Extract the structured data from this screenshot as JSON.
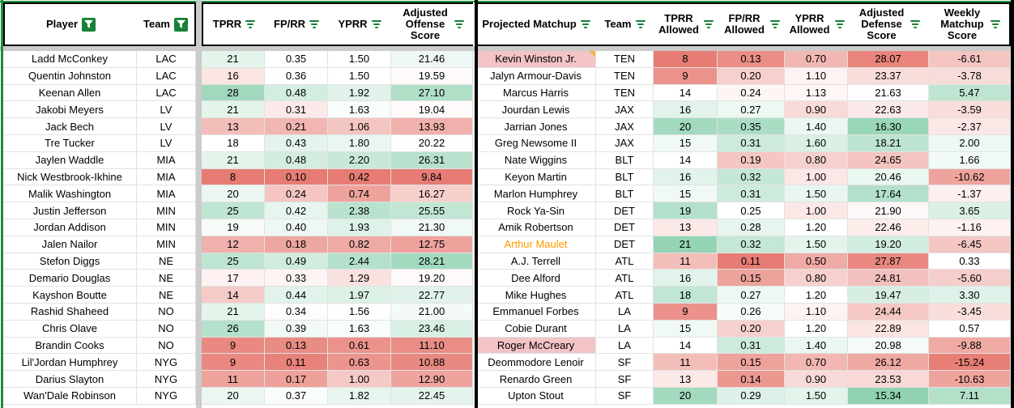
{
  "header": {
    "left": [
      {
        "label": "Player",
        "icon": "funnel-filter-active"
      },
      {
        "label": "Team",
        "icon": "funnel-filter-active"
      },
      {
        "label": "TPRR",
        "icon": "filter-lines"
      },
      {
        "label": "FP/RR",
        "icon": "filter-lines"
      },
      {
        "label": "YPRR",
        "icon": "filter-lines"
      },
      {
        "label": "Adjusted Offense Score",
        "icon": "filter-lines"
      }
    ],
    "right": [
      {
        "label": "Projected Matchup",
        "icon": "filter-lines"
      },
      {
        "label": "Team",
        "icon": "filter-lines"
      },
      {
        "label": "TPRR Allowed",
        "icon": "filter-lines"
      },
      {
        "label": "FP/RR Allowed",
        "icon": "filter-lines"
      },
      {
        "label": "YPRR Allowed",
        "icon": "filter-lines"
      },
      {
        "label": "Adjusted Defense Score",
        "icon": "filter-lines"
      },
      {
        "label": "Weekly Matchup Score",
        "icon": "filter-lines"
      }
    ]
  },
  "colors": {
    "filter_green": "#188038",
    "frozen_divider_grey": "#cbcbcb",
    "gridline": "#e2e2e2",
    "table_border": "#000000",
    "note_corner_orange": "#f6b73c",
    "matchup_highlight_pink": "#f2c4c6",
    "orange_player_text": "#ff9900",
    "scale_red": "#e67c73",
    "scale_green": "#57bb8a"
  },
  "rows": [
    {
      "player": "Ladd McConkey",
      "team": "LAC",
      "stats": [
        {
          "v": "21",
          "bg": "#e3f4eb"
        },
        {
          "v": "0.35",
          "bg": "#ffffff"
        },
        {
          "v": "1.50",
          "bg": "#ffffff"
        },
        {
          "v": "21.46",
          "bg": "#eff8f4"
        }
      ],
      "matchup": {
        "name": "Kevin Winston Jr.",
        "bg": "#f2c4c6",
        "note": true
      },
      "mteam": "TEN",
      "mstats": [
        {
          "v": "8",
          "bg": "#e67c73"
        },
        {
          "v": "0.13",
          "bg": "#ea8e87"
        },
        {
          "v": "0.70",
          "bg": "#f1b7b2"
        },
        {
          "v": "28.07",
          "bg": "#e8847b"
        },
        {
          "v": "-6.61",
          "bg": "#f4c5c1"
        }
      ]
    },
    {
      "player": "Quentin Johnston",
      "team": "LAC",
      "stats": [
        {
          "v": "16",
          "bg": "#fae5e3"
        },
        {
          "v": "0.36",
          "bg": "#fdfefd"
        },
        {
          "v": "1.50",
          "bg": "#ffffff"
        },
        {
          "v": "19.59",
          "bg": "#fefafa"
        }
      ],
      "matchup": {
        "name": "Jalyn Armour-Davis"
      },
      "mteam": "TEN",
      "mstats": [
        {
          "v": "9",
          "bg": "#ea928b"
        },
        {
          "v": "0.20",
          "bg": "#f6d0cd"
        },
        {
          "v": "1.10",
          "bg": "#fdf3f2"
        },
        {
          "v": "23.37",
          "bg": "#f8dcd9"
        },
        {
          "v": "-3.78",
          "bg": "#f8dcd9"
        }
      ]
    },
    {
      "player": "Keenan Allen",
      "team": "LAC",
      "stats": [
        {
          "v": "28",
          "bg": "#a2d9be"
        },
        {
          "v": "0.48",
          "bg": "#d3ede1"
        },
        {
          "v": "1.92",
          "bg": "#e0f2e9"
        },
        {
          "v": "27.10",
          "bg": "#b0dfc8"
        }
      ],
      "matchup": {
        "name": "Marcus Harris"
      },
      "mteam": "TEN",
      "mstats": [
        {
          "v": "14",
          "bg": "#ffffff"
        },
        {
          "v": "0.24",
          "bg": "#fdf6f5"
        },
        {
          "v": "1.13",
          "bg": "#fef7f6"
        },
        {
          "v": "21.63",
          "bg": "#fefcfc"
        },
        {
          "v": "5.47",
          "bg": "#bfe5d2"
        }
      ]
    },
    {
      "player": "Jakobi Meyers",
      "team": "LV",
      "stats": [
        {
          "v": "21",
          "bg": "#e3f4eb"
        },
        {
          "v": "0.31",
          "bg": "#fbeae9"
        },
        {
          "v": "1.63",
          "bg": "#f8fcfa"
        },
        {
          "v": "19.04",
          "bg": "#fefafa"
        }
      ],
      "matchup": {
        "name": "Jourdan Lewis"
      },
      "mteam": "JAX",
      "mstats": [
        {
          "v": "16",
          "bg": "#e1f3ea"
        },
        {
          "v": "0.27",
          "bg": "#eef8f3"
        },
        {
          "v": "0.90",
          "bg": "#f8dbd9"
        },
        {
          "v": "22.63",
          "bg": "#fbeae9"
        },
        {
          "v": "-3.59",
          "bg": "#f9dddb"
        }
      ]
    },
    {
      "player": "Jack Bech",
      "team": "LV",
      "stats": [
        {
          "v": "13",
          "bg": "#f3beb9"
        },
        {
          "v": "0.21",
          "bg": "#f1b6b1"
        },
        {
          "v": "1.06",
          "bg": "#f4c6c2"
        },
        {
          "v": "13.93",
          "bg": "#f0b0ab"
        }
      ],
      "matchup": {
        "name": "Jarrian Jones"
      },
      "mteam": "JAX",
      "mstats": [
        {
          "v": "20",
          "bg": "#a3dabf"
        },
        {
          "v": "0.35",
          "bg": "#abddc5"
        },
        {
          "v": "1.40",
          "bg": "#ecf7f2"
        },
        {
          "v": "16.30",
          "bg": "#99d6b8"
        },
        {
          "v": "-2.37",
          "bg": "#fbe7e6"
        }
      ]
    },
    {
      "player": "Tre Tucker",
      "team": "LV",
      "stats": [
        {
          "v": "18",
          "bg": "#ffffff"
        },
        {
          "v": "0.43",
          "bg": "#e4f4ec"
        },
        {
          "v": "1.80",
          "bg": "#eaf7f0"
        },
        {
          "v": "20.22",
          "bg": "#fcfefd"
        }
      ],
      "matchup": {
        "name": "Greg Newsome II"
      },
      "mteam": "JAX",
      "mstats": [
        {
          "v": "15",
          "bg": "#f0f9f4"
        },
        {
          "v": "0.31",
          "bg": "#cdebdc"
        },
        {
          "v": "1.60",
          "bg": "#daf0e5"
        },
        {
          "v": "18.21",
          "bg": "#bde4d1"
        },
        {
          "v": "2.00",
          "bg": "#eef8f3"
        }
      ]
    },
    {
      "player": "Jaylen Waddle",
      "team": "MIA",
      "stats": [
        {
          "v": "21",
          "bg": "#e3f4eb"
        },
        {
          "v": "0.48",
          "bg": "#d3ede1"
        },
        {
          "v": "2.20",
          "bg": "#c8e9d9"
        },
        {
          "v": "26.31",
          "bg": "#b8e2ce"
        }
      ],
      "matchup": {
        "name": "Nate Wiggins"
      },
      "mteam": "BLT",
      "mstats": [
        {
          "v": "14",
          "bg": "#ffffff"
        },
        {
          "v": "0.19",
          "bg": "#f4c7c3"
        },
        {
          "v": "0.80",
          "bg": "#f6d0cd"
        },
        {
          "v": "24.65",
          "bg": "#f4c4c0"
        },
        {
          "v": "1.66",
          "bg": "#f2faf6"
        }
      ]
    },
    {
      "player": "Nick Westbrook-Ikhine",
      "team": "MIA",
      "stats": [
        {
          "v": "8",
          "bg": "#e67c73"
        },
        {
          "v": "0.10",
          "bg": "#e67c73"
        },
        {
          "v": "0.42",
          "bg": "#e67c73"
        },
        {
          "v": "9.84",
          "bg": "#e67c73"
        }
      ],
      "matchup": {
        "name": "Keyon Martin"
      },
      "mteam": "BLT",
      "mstats": [
        {
          "v": "16",
          "bg": "#e1f3ea"
        },
        {
          "v": "0.32",
          "bg": "#c4e7d6"
        },
        {
          "v": "1.00",
          "bg": "#fbe7e6"
        },
        {
          "v": "20.46",
          "bg": "#ebf7f1"
        },
        {
          "v": "-10.62",
          "bg": "#eea39d"
        }
      ]
    },
    {
      "player": "Malik Washington",
      "team": "MIA",
      "stats": [
        {
          "v": "20",
          "bg": "#ecf7f2"
        },
        {
          "v": "0.24",
          "bg": "#f4c5c1"
        },
        {
          "v": "0.74",
          "bg": "#eda29c"
        },
        {
          "v": "16.27",
          "bg": "#f6cfcb"
        }
      ],
      "matchup": {
        "name": "Marlon Humphrey"
      },
      "mteam": "BLT",
      "mstats": [
        {
          "v": "15",
          "bg": "#f0f9f4"
        },
        {
          "v": "0.31",
          "bg": "#cdebdc"
        },
        {
          "v": "1.50",
          "bg": "#e9f6ef"
        },
        {
          "v": "17.64",
          "bg": "#b3e0ca"
        },
        {
          "v": "-1.37",
          "bg": "#fcefee"
        }
      ]
    },
    {
      "player": "Justin Jefferson",
      "team": "MIN",
      "stats": [
        {
          "v": "25",
          "bg": "#bee5d1"
        },
        {
          "v": "0.42",
          "bg": "#e7f5ef"
        },
        {
          "v": "2.38",
          "bg": "#b9e3ce"
        },
        {
          "v": "25.55",
          "bg": "#c1e6d4"
        }
      ],
      "matchup": {
        "name": "Rock Ya-Sin"
      },
      "mteam": "DET",
      "mstats": [
        {
          "v": "19",
          "bg": "#b3e0ca"
        },
        {
          "v": "0.25",
          "bg": "#ffffff"
        },
        {
          "v": "1.00",
          "bg": "#fbe7e6"
        },
        {
          "v": "21.90",
          "bg": "#fef7f7"
        },
        {
          "v": "3.65",
          "bg": "#daf0e5"
        }
      ]
    },
    {
      "player": "Jordan Addison",
      "team": "MIN",
      "stats": [
        {
          "v": "19",
          "bg": "#f6fbf8"
        },
        {
          "v": "0.40",
          "bg": "#eef8f3"
        },
        {
          "v": "1.93",
          "bg": "#dff2e9"
        },
        {
          "v": "21.30",
          "bg": "#f0f9f5"
        }
      ],
      "matchup": {
        "name": "Amik Robertson"
      },
      "mteam": "DET",
      "mstats": [
        {
          "v": "13",
          "bg": "#fbe9e7"
        },
        {
          "v": "0.28",
          "bg": "#e6f5ed"
        },
        {
          "v": "1.20",
          "bg": "#ffffff"
        },
        {
          "v": "22.46",
          "bg": "#fcedeb"
        },
        {
          "v": "-1.16",
          "bg": "#fdf2f1"
        }
      ]
    },
    {
      "player": "Jalen Nailor",
      "team": "MIN",
      "stats": [
        {
          "v": "12",
          "bg": "#f0b0ab"
        },
        {
          "v": "0.18",
          "bg": "#eea6a0"
        },
        {
          "v": "0.82",
          "bg": "#efaaa4"
        },
        {
          "v": "12.75",
          "bg": "#eda29c"
        }
      ],
      "matchup": {
        "name": "Arthur Maulet",
        "color": "#ff9900"
      },
      "mteam": "DET",
      "mstats": [
        {
          "v": "21",
          "bg": "#94d4b5"
        },
        {
          "v": "0.32",
          "bg": "#c4e7d6"
        },
        {
          "v": "1.50",
          "bg": "#e3f4eb"
        },
        {
          "v": "19.20",
          "bg": "#d2eddf"
        },
        {
          "v": "-6.45",
          "bg": "#f4c7c3"
        }
      ]
    },
    {
      "player": "Stefon Diggs",
      "team": "NE",
      "stats": [
        {
          "v": "25",
          "bg": "#bee5d1"
        },
        {
          "v": "0.49",
          "bg": "#d0ecde"
        },
        {
          "v": "2.44",
          "bg": "#b4e1cb"
        },
        {
          "v": "28.21",
          "bg": "#a3dabf"
        }
      ],
      "matchup": {
        "name": "A.J. Terrell"
      },
      "mteam": "ATL",
      "mstats": [
        {
          "v": "11",
          "bg": "#f3beb9"
        },
        {
          "v": "0.11",
          "bg": "#e67c73"
        },
        {
          "v": "0.50",
          "bg": "#efaba5"
        },
        {
          "v": "27.87",
          "bg": "#e88880"
        },
        {
          "v": "0.33",
          "bg": "#ffffff"
        }
      ]
    },
    {
      "player": "Demario Douglas",
      "team": "NE",
      "stats": [
        {
          "v": "17",
          "bg": "#fdf2f1"
        },
        {
          "v": "0.33",
          "bg": "#fdf5f4"
        },
        {
          "v": "1.29",
          "bg": "#f9e1df"
        },
        {
          "v": "19.20",
          "bg": "#fefafa"
        }
      ],
      "matchup": {
        "name": "Dee Alford"
      },
      "mteam": "ATL",
      "mstats": [
        {
          "v": "16",
          "bg": "#e1f3ea"
        },
        {
          "v": "0.15",
          "bg": "#eda29c"
        },
        {
          "v": "0.80",
          "bg": "#f6d0cd"
        },
        {
          "v": "24.81",
          "bg": "#f3c1bd"
        },
        {
          "v": "-5.60",
          "bg": "#f5cdca"
        }
      ]
    },
    {
      "player": "Kayshon Boutte",
      "team": "NE",
      "stats": [
        {
          "v": "14",
          "bg": "#f5cbc7"
        },
        {
          "v": "0.44",
          "bg": "#e1f3ea"
        },
        {
          "v": "1.97",
          "bg": "#dcf1e6"
        },
        {
          "v": "22.77",
          "bg": "#e0f2e9"
        }
      ],
      "matchup": {
        "name": "Mike Hughes"
      },
      "mteam": "ATL",
      "mstats": [
        {
          "v": "18",
          "bg": "#c2e6d4"
        },
        {
          "v": "0.27",
          "bg": "#eef8f3"
        },
        {
          "v": "1.20",
          "bg": "#ffffff"
        },
        {
          "v": "19.47",
          "bg": "#d7efe3"
        },
        {
          "v": "3.30",
          "bg": "#dff2e9"
        }
      ]
    },
    {
      "player": "Rashid Shaheed",
      "team": "NO",
      "stats": [
        {
          "v": "21",
          "bg": "#e3f4eb"
        },
        {
          "v": "0.34",
          "bg": "#fefcfc"
        },
        {
          "v": "1.56",
          "bg": "#fdfefd"
        },
        {
          "v": "21.00",
          "bg": "#f4faf7"
        }
      ],
      "matchup": {
        "name": "Emmanuel Forbes"
      },
      "mteam": "LA",
      "mstats": [
        {
          "v": "9",
          "bg": "#ea928b"
        },
        {
          "v": "0.26",
          "bg": "#f7fcf9"
        },
        {
          "v": "1.10",
          "bg": "#fdf3f2"
        },
        {
          "v": "24.44",
          "bg": "#f5c8c4"
        },
        {
          "v": "-3.45",
          "bg": "#f9dedc"
        }
      ]
    },
    {
      "player": "Chris Olave",
      "team": "NO",
      "stats": [
        {
          "v": "26",
          "bg": "#b4e1cb"
        },
        {
          "v": "0.39",
          "bg": "#f2faf6"
        },
        {
          "v": "1.63",
          "bg": "#f8fcfa"
        },
        {
          "v": "23.46",
          "bg": "#d8efe4"
        }
      ],
      "matchup": {
        "name": "Cobie Durant"
      },
      "mteam": "LA",
      "mstats": [
        {
          "v": "15",
          "bg": "#f0f9f4"
        },
        {
          "v": "0.20",
          "bg": "#f6d0cd"
        },
        {
          "v": "1.20",
          "bg": "#ffffff"
        },
        {
          "v": "22.89",
          "bg": "#fae5e3"
        },
        {
          "v": "0.57",
          "bg": "#fefffe"
        }
      ]
    },
    {
      "player": "Brandin Cooks",
      "team": "NO",
      "stats": [
        {
          "v": "9",
          "bg": "#e98981"
        },
        {
          "v": "0.13",
          "bg": "#e98c84"
        },
        {
          "v": "0.61",
          "bg": "#ea928b"
        },
        {
          "v": "11.10",
          "bg": "#e98d85"
        }
      ],
      "matchup": {
        "name": "Roger McCreary",
        "bg": "#f2c4c6"
      },
      "mteam": "LA",
      "mstats": [
        {
          "v": "14",
          "bg": "#ffffff"
        },
        {
          "v": "0.31",
          "bg": "#cdebdc"
        },
        {
          "v": "1.40",
          "bg": "#ecf7f2"
        },
        {
          "v": "20.98",
          "bg": "#f5fbf8"
        },
        {
          "v": "-9.88",
          "bg": "#efaaa4"
        }
      ]
    },
    {
      "player": "Lil'Jordan Humphrey",
      "team": "NYG",
      "stats": [
        {
          "v": "9",
          "bg": "#e98981"
        },
        {
          "v": "0.11",
          "bg": "#e78179"
        },
        {
          "v": "0.63",
          "bg": "#eb958e"
        },
        {
          "v": "10.88",
          "bg": "#e98a82"
        }
      ],
      "matchup": {
        "name": "Deommodore Lenoir"
      },
      "mteam": "SF",
      "mstats": [
        {
          "v": "11",
          "bg": "#f3beb9"
        },
        {
          "v": "0.15",
          "bg": "#eda29c"
        },
        {
          "v": "0.70",
          "bg": "#f1b7b2"
        },
        {
          "v": "26.12",
          "bg": "#efa9a3"
        },
        {
          "v": "-15.24",
          "bg": "#e77f76"
        }
      ]
    },
    {
      "player": "Darius Slayton",
      "team": "NYG",
      "stats": [
        {
          "v": "11",
          "bg": "#eea39d"
        },
        {
          "v": "0.17",
          "bg": "#eda19a"
        },
        {
          "v": "1.00",
          "bg": "#f5c9c5"
        },
        {
          "v": "12.90",
          "bg": "#eea39d"
        }
      ],
      "matchup": {
        "name": "Renardo Green"
      },
      "mteam": "SF",
      "mstats": [
        {
          "v": "13",
          "bg": "#fbe9e7"
        },
        {
          "v": "0.14",
          "bg": "#eb9891"
        },
        {
          "v": "0.90",
          "bg": "#f8dbd9"
        },
        {
          "v": "23.53",
          "bg": "#f8d9d6"
        },
        {
          "v": "-10.63",
          "bg": "#eea39d"
        }
      ]
    },
    {
      "player": "Wan'Dale Robinson",
      "team": "NYG",
      "stats": [
        {
          "v": "20",
          "bg": "#ecf7f2"
        },
        {
          "v": "0.37",
          "bg": "#f8fcfa"
        },
        {
          "v": "1.82",
          "bg": "#e8f6ef"
        },
        {
          "v": "22.45",
          "bg": "#e4f4ec"
        }
      ],
      "matchup": {
        "name": "Upton Stout"
      },
      "mteam": "SF",
      "mstats": [
        {
          "v": "20",
          "bg": "#a3dabf"
        },
        {
          "v": "0.29",
          "bg": "#ddf1e8"
        },
        {
          "v": "1.50",
          "bg": "#e3f4eb"
        },
        {
          "v": "15.34",
          "bg": "#90d2b2"
        },
        {
          "v": "7.11",
          "bg": "#b2e0c9"
        }
      ]
    }
  ],
  "partial_next_row": {
    "left_bgs": [
      "#ffffff",
      "#ffffff",
      "#f2b9b3",
      "#fbe3e1",
      "#fdf4f3",
      "#f8d8d5"
    ],
    "right_bgs": [
      "#ffffff",
      "#ffffff",
      "#f4c3bf",
      "#f4c3bf",
      "#f3bdba",
      "#f3bdba",
      "#f3bdba"
    ]
  }
}
